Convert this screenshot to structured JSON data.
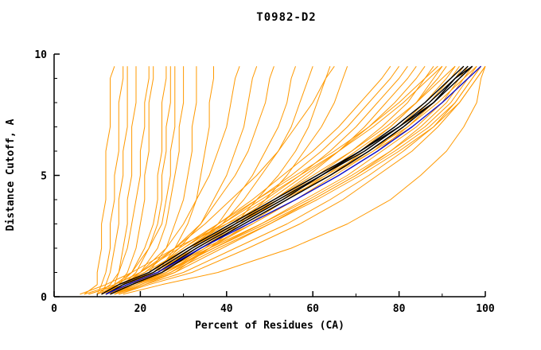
{
  "chart_data": {
    "type": "line",
    "title": "T0982-D2",
    "xlabel": "Percent of Residues (CA)",
    "ylabel": "Distance Cutoff, A",
    "xlim": [
      0,
      100
    ],
    "ylim": [
      0,
      10
    ],
    "x_ticks": [
      0,
      20,
      40,
      60,
      80,
      100
    ],
    "x_tick_labels": [
      "0",
      "20",
      "40",
      "60",
      "80",
      "100"
    ],
    "x_minor_ticks": [
      10,
      30,
      50,
      70,
      90
    ],
    "y_ticks": [
      0,
      5,
      10
    ],
    "y_tick_labels": [
      "0",
      "5",
      "10"
    ],
    "y_minor_ticks": [
      1,
      2,
      3,
      4,
      6,
      7,
      8,
      9
    ],
    "grid": false,
    "legend": "none",
    "colors": {
      "orange": "#ff9900",
      "black": "#000000",
      "blue": "#0f0fcc"
    },
    "y_grid": [
      0.1,
      0.5,
      1,
      2,
      3,
      4,
      5,
      6,
      7,
      8,
      9,
      9.5
    ],
    "series": [
      {
        "color": "orange",
        "x": [
          7,
          10,
          10,
          11,
          11,
          12,
          12,
          12,
          13,
          13,
          13,
          14
        ]
      },
      {
        "color": "orange",
        "x": [
          10,
          11,
          12,
          13,
          13,
          14,
          14,
          15,
          15,
          15,
          16,
          16
        ]
      },
      {
        "color": "orange",
        "x": [
          11,
          12,
          13,
          14,
          15,
          15,
          16,
          16,
          17,
          17,
          17,
          17
        ]
      },
      {
        "color": "orange",
        "x": [
          12,
          14,
          15,
          16,
          17,
          17,
          18,
          18,
          18,
          19,
          19,
          19
        ]
      },
      {
        "color": "orange",
        "x": [
          13,
          15,
          17,
          19,
          20,
          21,
          21,
          22,
          22,
          22,
          23,
          23
        ]
      },
      {
        "color": "orange",
        "x": [
          12,
          15,
          18,
          21,
          23,
          24,
          24,
          25,
          25,
          25,
          26,
          26
        ]
      },
      {
        "color": "orange",
        "x": [
          13,
          16,
          19,
          22,
          24,
          25,
          25,
          26,
          26,
          27,
          27,
          27
        ]
      },
      {
        "color": "orange",
        "x": [
          11,
          14,
          18,
          22,
          25,
          26,
          27,
          27,
          28,
          28,
          28,
          28
        ]
      },
      {
        "color": "orange",
        "x": [
          12,
          16,
          20,
          24,
          26,
          27,
          28,
          29,
          29,
          30,
          30,
          30
        ]
      },
      {
        "color": "orange",
        "x": [
          13,
          17,
          22,
          26,
          28,
          30,
          31,
          32,
          32,
          33,
          33,
          33
        ]
      },
      {
        "color": "orange",
        "x": [
          14,
          18,
          24,
          28,
          31,
          33,
          34,
          35,
          36,
          36,
          37,
          37
        ]
      },
      {
        "color": "orange",
        "x": [
          10,
          13,
          15,
          17,
          18,
          19,
          20,
          20,
          21,
          21,
          22,
          22
        ]
      },
      {
        "color": "orange",
        "x": [
          12,
          16,
          20,
          26,
          30,
          33,
          36,
          38,
          40,
          41,
          42,
          43
        ]
      },
      {
        "color": "orange",
        "x": [
          13,
          18,
          23,
          29,
          34,
          37,
          40,
          42,
          44,
          45,
          46,
          47
        ]
      },
      {
        "color": "orange",
        "x": [
          11,
          15,
          21,
          28,
          34,
          38,
          42,
          45,
          47,
          49,
          50,
          51
        ]
      },
      {
        "color": "orange",
        "x": [
          14,
          19,
          25,
          32,
          38,
          42,
          46,
          49,
          52,
          54,
          55,
          56
        ]
      },
      {
        "color": "orange",
        "x": [
          12,
          17,
          24,
          32,
          39,
          44,
          48,
          52,
          55,
          57,
          59,
          60
        ]
      },
      {
        "color": "orange",
        "x": [
          13,
          18,
          26,
          35,
          42,
          47,
          52,
          56,
          59,
          61,
          63,
          64
        ]
      },
      {
        "color": "orange",
        "x": [
          7,
          14,
          20,
          28,
          35,
          41,
          47,
          52,
          56,
          60,
          63,
          65
        ]
      },
      {
        "color": "orange",
        "x": [
          15,
          21,
          28,
          36,
          43,
          49,
          54,
          58,
          62,
          65,
          67,
          68
        ]
      },
      {
        "color": "orange",
        "x": [
          11,
          16,
          22,
          30,
          38,
          46,
          53,
          60,
          66,
          71,
          76,
          78
        ]
      },
      {
        "color": "orange",
        "x": [
          12,
          17,
          23,
          31,
          39,
          47,
          55,
          62,
          68,
          73,
          78,
          80
        ]
      },
      {
        "color": "orange",
        "x": [
          10,
          15,
          22,
          31,
          40,
          49,
          57,
          64,
          70,
          75,
          80,
          82
        ]
      },
      {
        "color": "orange",
        "x": [
          13,
          18,
          25,
          33,
          42,
          51,
          59,
          66,
          72,
          77,
          82,
          84
        ]
      },
      {
        "color": "orange",
        "x": [
          11,
          16,
          23,
          32,
          41,
          50,
          58,
          66,
          73,
          79,
          84,
          86
        ]
      },
      {
        "color": "orange",
        "x": [
          12,
          18,
          25,
          34,
          43,
          52,
          61,
          69,
          76,
          82,
          86,
          88
        ]
      },
      {
        "color": "orange",
        "x": [
          14,
          20,
          27,
          36,
          45,
          54,
          63,
          71,
          78,
          84,
          88,
          90
        ]
      },
      {
        "color": "orange",
        "x": [
          8,
          15,
          23,
          33,
          43,
          53,
          62,
          70,
          78,
          84,
          89,
          91
        ]
      },
      {
        "color": "orange",
        "x": [
          12,
          17,
          24,
          34,
          44,
          54,
          64,
          72,
          80,
          86,
          91,
          93
        ]
      },
      {
        "color": "orange",
        "x": [
          13,
          19,
          26,
          36,
          46,
          56,
          65,
          74,
          81,
          87,
          92,
          94
        ]
      },
      {
        "color": "orange",
        "x": [
          11,
          16,
          24,
          35,
          46,
          56,
          66,
          75,
          82,
          88,
          93,
          95
        ]
      },
      {
        "color": "orange",
        "x": [
          12,
          18,
          26,
          37,
          48,
          58,
          68,
          76,
          84,
          90,
          94,
          96
        ]
      },
      {
        "color": "orange",
        "x": [
          14,
          20,
          28,
          39,
          50,
          60,
          70,
          78,
          85,
          91,
          95,
          97
        ]
      },
      {
        "color": "orange",
        "x": [
          8,
          15,
          24,
          36,
          48,
          59,
          69,
          78,
          86,
          92,
          96,
          98
        ]
      },
      {
        "color": "orange",
        "x": [
          12,
          17,
          25,
          37,
          49,
          60,
          70,
          79,
          87,
          93,
          97,
          99
        ]
      },
      {
        "color": "orange",
        "x": [
          13,
          19,
          27,
          38,
          50,
          61,
          71,
          80,
          88,
          94,
          98,
          100
        ]
      },
      {
        "color": "orange",
        "x": [
          15,
          22,
          32,
          45,
          57,
          67,
          75,
          83,
          89,
          94,
          98,
          100
        ]
      },
      {
        "color": "orange",
        "x": [
          6,
          12,
          18,
          28,
          40,
          52,
          63,
          73,
          82,
          89,
          95,
          98
        ]
      },
      {
        "color": "orange",
        "x": [
          11,
          15,
          21,
          31,
          42,
          53,
          64,
          74,
          83,
          90,
          96,
          99
        ]
      },
      {
        "color": "orange",
        "x": [
          16,
          25,
          38,
          55,
          68,
          78,
          85,
          91,
          95,
          98,
          99,
          100
        ]
      },
      {
        "color": "orange",
        "x": [
          12,
          16,
          22,
          30,
          39,
          48,
          57,
          66,
          74,
          81,
          87,
          90
        ]
      },
      {
        "color": "orange",
        "x": [
          13,
          18,
          24,
          33,
          42,
          51,
          60,
          69,
          77,
          84,
          90,
          93
        ]
      },
      {
        "color": "orange",
        "x": [
          11,
          14,
          20,
          29,
          38,
          47,
          56,
          65,
          73,
          80,
          86,
          89
        ]
      },
      {
        "color": "orange",
        "x": [
          14,
          21,
          30,
          42,
          54,
          64,
          73,
          81,
          88,
          93,
          97,
          99
        ]
      },
      {
        "color": "black",
        "x": [
          12,
          17,
          24,
          33,
          43,
          53,
          62,
          71,
          79,
          86,
          92,
          95
        ]
      },
      {
        "color": "black",
        "x": [
          13,
          18,
          25,
          34,
          44,
          54,
          64,
          73,
          81,
          88,
          93,
          96
        ]
      },
      {
        "color": "black",
        "x": [
          12,
          16,
          23,
          32,
          42,
          52,
          62,
          72,
          80,
          87,
          93,
          97
        ]
      },
      {
        "color": "black",
        "x": [
          11,
          15,
          22,
          31,
          41,
          51,
          61,
          71,
          80,
          88,
          94,
          97
        ]
      },
      {
        "color": "blue",
        "x": [
          12,
          17,
          24,
          34,
          45,
          56,
          66,
          75,
          83,
          90,
          96,
          99
        ]
      }
    ]
  }
}
